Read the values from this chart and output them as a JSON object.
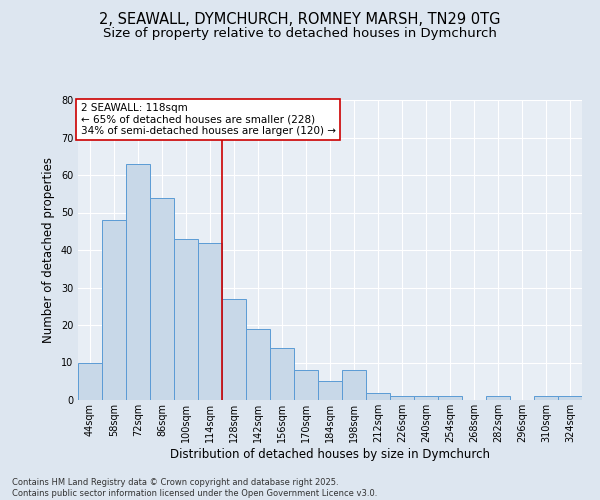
{
  "title_line1": "2, SEAWALL, DYMCHURCH, ROMNEY MARSH, TN29 0TG",
  "title_line2": "Size of property relative to detached houses in Dymchurch",
  "xlabel": "Distribution of detached houses by size in Dymchurch",
  "ylabel": "Number of detached properties",
  "categories": [
    "44sqm",
    "58sqm",
    "72sqm",
    "86sqm",
    "100sqm",
    "114sqm",
    "128sqm",
    "142sqm",
    "156sqm",
    "170sqm",
    "184sqm",
    "198sqm",
    "212sqm",
    "226sqm",
    "240sqm",
    "254sqm",
    "268sqm",
    "282sqm",
    "296sqm",
    "310sqm",
    "324sqm"
  ],
  "bar_values": [
    10,
    48,
    63,
    54,
    43,
    42,
    27,
    19,
    14,
    8,
    5,
    8,
    2,
    1,
    1,
    1,
    0,
    1,
    0,
    1,
    1
  ],
  "bar_color": "#c8d8e8",
  "bar_edge_color": "#5b9bd5",
  "vline_x": 5.5,
  "vline_color": "#cc0000",
  "annotation_text": "2 SEAWALL: 118sqm\n← 65% of detached houses are smaller (228)\n34% of semi-detached houses are larger (120) →",
  "annotation_box_color": "#ffffff",
  "annotation_box_edge": "#cc0000",
  "ylim": [
    0,
    80
  ],
  "yticks": [
    0,
    10,
    20,
    30,
    40,
    50,
    60,
    70,
    80
  ],
  "background_color": "#dde6f0",
  "plot_bg_color": "#e8eef5",
  "grid_color": "#ffffff",
  "footer": "Contains HM Land Registry data © Crown copyright and database right 2025.\nContains public sector information licensed under the Open Government Licence v3.0.",
  "title_fontsize": 10.5,
  "subtitle_fontsize": 9.5,
  "axis_label_fontsize": 8.5,
  "tick_fontsize": 7,
  "annotation_fontsize": 7.5,
  "footer_fontsize": 6
}
